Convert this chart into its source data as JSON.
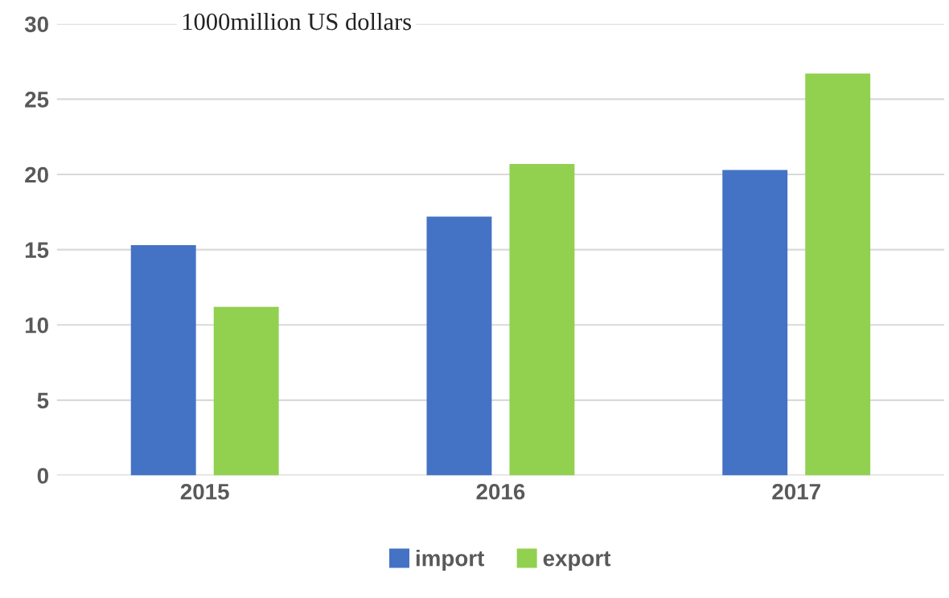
{
  "chart_data": {
    "type": "bar",
    "ylabel": "1000million US dollars",
    "categories": [
      "2015",
      "2016",
      "2017"
    ],
    "series": [
      {
        "name": "import",
        "color": "#4472c4",
        "values": [
          15.3,
          17.2,
          20.3
        ]
      },
      {
        "name": "export",
        "color": "#92d050",
        "values": [
          11.2,
          20.7,
          26.7
        ]
      }
    ],
    "ylim": [
      0,
      30
    ],
    "yticks": [
      0,
      5,
      10,
      15,
      20,
      25,
      30
    ],
    "grid": "y",
    "legend": "bottom"
  }
}
